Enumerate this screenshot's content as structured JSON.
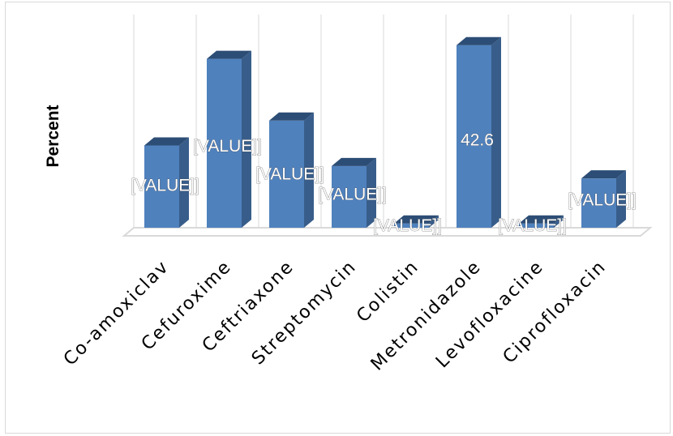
{
  "chart_data": {
    "type": "bar",
    "style": "3d-column",
    "title": "",
    "xlabel": "",
    "ylabel": "Percent",
    "categories": [
      "Co-amoxiclav",
      "Cefuroxime",
      "Ceftriaxone",
      "Streptomycin",
      "Colistin",
      "Metronidazole",
      "Levofloxacine",
      "Ciprofloxacin"
    ],
    "values": [
      19.2,
      39.4,
      25.0,
      14.4,
      1.0,
      42.6,
      1.0,
      11.5
    ],
    "data_labels": [
      "[VALUE]]",
      "[VALUE]]",
      "[VALUE]]",
      "[VALUE]]",
      "[VALUE]]",
      "42.6",
      "[VALUE]]",
      "[VALUE]]"
    ],
    "ylim": [
      0,
      45
    ],
    "grid": true,
    "legend": "none",
    "colors": {
      "bar_front": "#4f81bd",
      "bar_side": "#385d8a",
      "bar_top": "#2c4d75",
      "grid": "#d9d9d9",
      "floor": "#d9d9d9"
    }
  }
}
